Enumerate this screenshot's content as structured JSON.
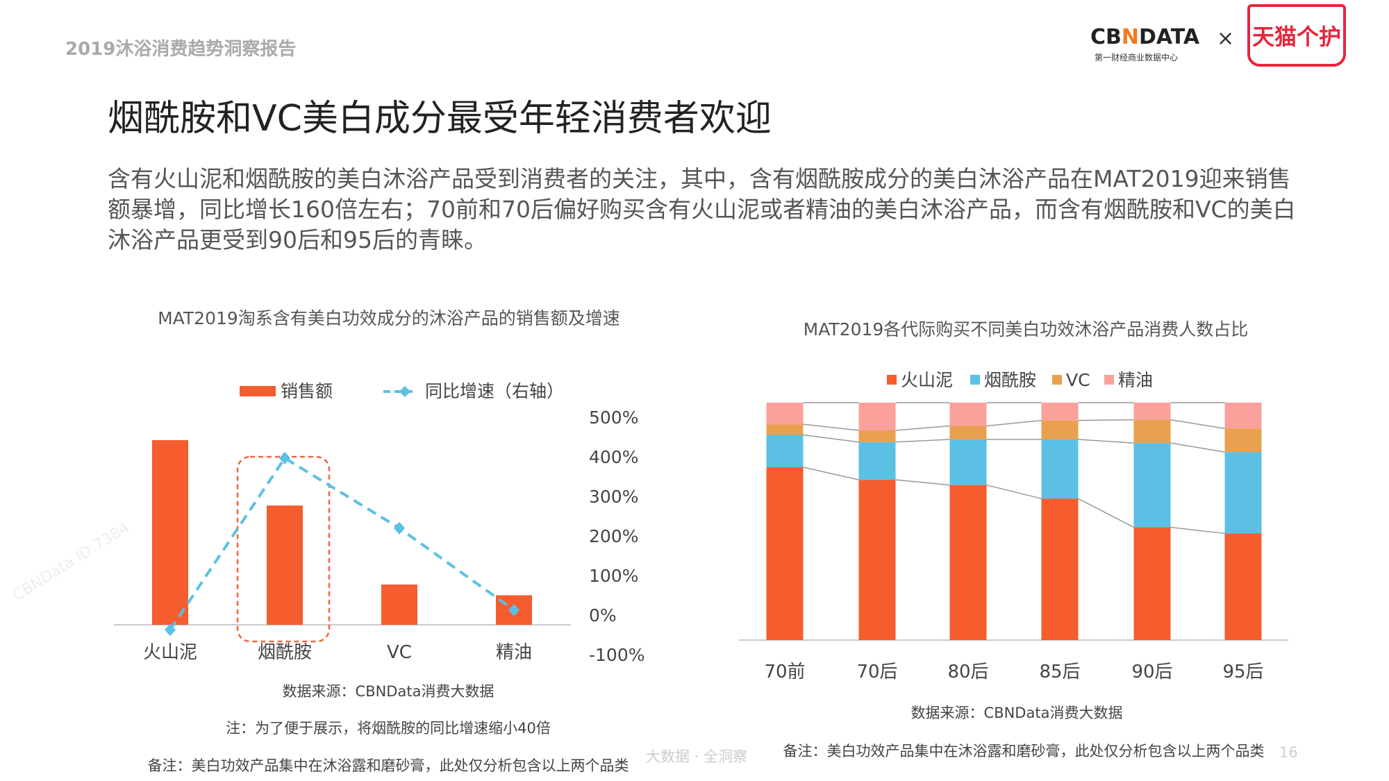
{
  "header": {
    "report_name": "2019沐浴消费趋势洞察报告",
    "logo_cbn": "CBNDATA",
    "logo_cbn_sub": "第一财经商业数据中心",
    "logo_times": "×",
    "logo_tmall": "天猫个护"
  },
  "title": "烟酰胺和VC美白成分最受年轻消费者欢迎",
  "paragraph": "含有火山泥和烟酰胺的美白沐浴产品受到消费者的关注，其中，含有烟酰胺成分的美白沐浴产品在MAT2019迎来销售额暴增，同比增长160倍左右；70前和70后偏好购买含有火山泥或者精油的美白沐浴产品，而含有烟酰胺和VC的美白沐浴产品更受到90后和95后的青睐。",
  "footer": {
    "slogan": "大数据 · 全洞察",
    "page": "16"
  },
  "watermark": "CBNData ID:7384",
  "colors": {
    "orange": "#F55C2E",
    "blue": "#5BC0E3",
    "vc": "#E9A04F",
    "oil": "#F9A19A",
    "highlight": "#F0643C"
  },
  "chart_data": [
    {
      "type": "bar+line",
      "title": "MAT2019淘系含有美白功效成分的沐浴产品的销售额及增速",
      "categories": [
        "火山泥",
        "烟酰胺",
        "VC",
        "精油"
      ],
      "series": [
        {
          "name": "销售额",
          "type": "bar",
          "axis": "left (hidden, relative)",
          "values": [
            100,
            64.6,
            21.8,
            16.0
          ]
        },
        {
          "name": "同比增速（右轴）",
          "type": "line",
          "style": "dashed with diamond markers",
          "axis": "right",
          "values": [
            -39,
            395,
            218,
            11
          ]
        }
      ],
      "y2_ticks": [
        "500%",
        "400%",
        "300%",
        "200%",
        "100%",
        "0%",
        "-100%"
      ],
      "y2lim": [
        -100,
        500
      ],
      "highlight": "烟酰胺",
      "legend": "top",
      "grid": false,
      "notes": [
        "数据来源：CBNData消费大数据",
        "注：为了便于展示，将烟酰胺的同比增速缩小40倍",
        "备注：美白功效产品集中在沐浴露和磨砂膏，此处仅分析包含以上两个品类"
      ]
    },
    {
      "type": "stacked-bar-100",
      "title": "MAT2019各代际购买不同美白功效沐浴产品消费人数占比",
      "categories": [
        "70前",
        "70后",
        "80后",
        "85后",
        "90后",
        "95后"
      ],
      "series": [
        {
          "name": "火山泥",
          "values": [
            72.8,
            67.5,
            65.3,
            59.6,
            47.5,
            44.9
          ]
        },
        {
          "name": "烟酰胺",
          "values": [
            13.6,
            15.9,
            19.2,
            24.9,
            35.5,
            34.3
          ]
        },
        {
          "name": "VC",
          "values": [
            4.5,
            4.9,
            5.7,
            8.0,
            9.8,
            9.9
          ]
        },
        {
          "name": "精油",
          "values": [
            9.1,
            11.7,
            9.8,
            7.5,
            7.2,
            10.9
          ]
        }
      ],
      "ylim": [
        0,
        100
      ],
      "series_lines": true,
      "legend": "top",
      "grid": false,
      "notes": [
        "数据来源：CBNData消费大数据",
        "备注：美白功效产品集中在沐浴露和磨砂膏，此处仅分析包含以上两个品类"
      ]
    }
  ]
}
